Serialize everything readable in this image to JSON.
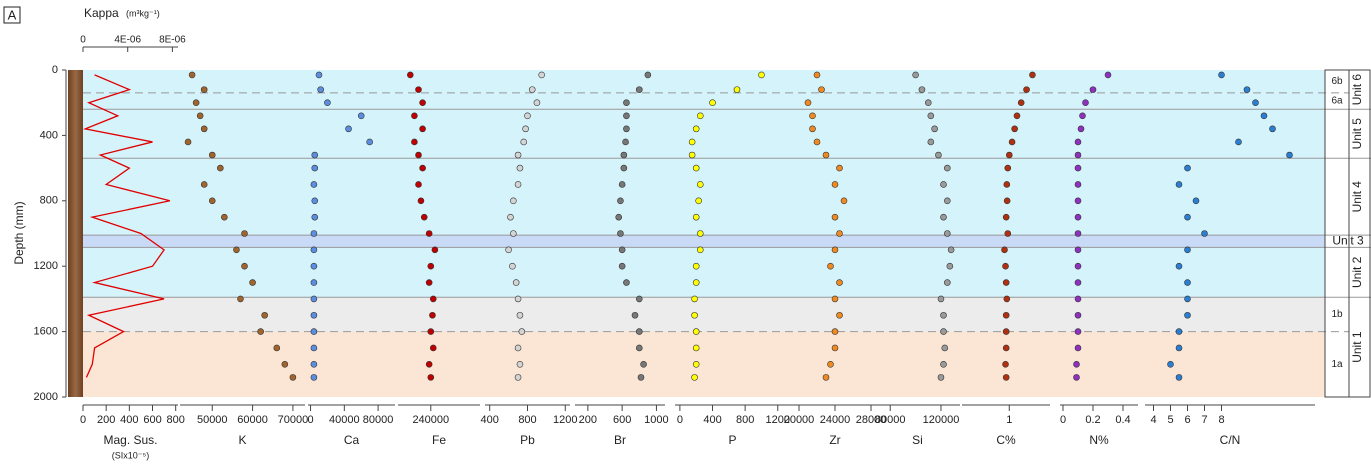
{
  "chart_data": {
    "type": "depth-profile",
    "panel_label": "A",
    "y_label": "Depth (mm)",
    "y_inverted": true,
    "ylim": [
      0,
      2000
    ],
    "yticks": [
      0,
      400,
      800,
      1200,
      1600,
      2000
    ],
    "top_axis": {
      "label": "Kappa",
      "unit": "(m³kg⁻¹)",
      "xlim": [
        0,
        8.5e-06
      ],
      "xticks": [
        0,
        {
          "value": 4e-06,
          "label": "4E-06"
        },
        {
          "value": 8e-06,
          "label": "8E-06"
        }
      ]
    },
    "depths": [
      30,
      120,
      200,
      280,
      360,
      440,
      520,
      600,
      700,
      800,
      900,
      1000,
      1100,
      1200,
      1300,
      1400,
      1500,
      1600,
      1700,
      1800,
      1880
    ],
    "zones": [
      {
        "label": "Unit 6",
        "top": 0,
        "bottom": 240,
        "color": "#d5f3fb"
      },
      {
        "label": "Unit 5",
        "top": 240,
        "bottom": 540,
        "color": "#d5f3fb"
      },
      {
        "label": "Unit 4",
        "top": 540,
        "bottom": 1010,
        "color": "#d5f3fb"
      },
      {
        "label": "Unit 3",
        "top": 1010,
        "bottom": 1085,
        "color": "#c8daf6"
      },
      {
        "label": "Unit 2",
        "top": 1085,
        "bottom": 1390,
        "color": "#d5f3fb"
      },
      {
        "label": "Unit 1",
        "top": 1390,
        "bottom": 2000,
        "color": "#fbe6d5"
      }
    ],
    "subunits": [
      {
        "label": "6b",
        "top": 0,
        "bottom": 140
      },
      {
        "label": "6a",
        "top": 140,
        "bottom": 240
      },
      {
        "label": "1b",
        "top": 1390,
        "bottom": 1600,
        "color": "#ececec"
      },
      {
        "label": "1a",
        "top": 1600,
        "bottom": 2000
      }
    ],
    "panels": [
      {
        "type": "line",
        "name": "Mag. Sus.",
        "unit": "(SIx10⁻⁵)",
        "color": "#e00000",
        "xlim": [
          0,
          820
        ],
        "xticks": [
          0,
          200,
          400,
          600,
          800
        ],
        "values": [
          100,
          400,
          50,
          300,
          20,
          600,
          150,
          400,
          200,
          750,
          80,
          500,
          700,
          600,
          100,
          700,
          50,
          350,
          100,
          80,
          30
        ]
      },
      {
        "type": "scatter",
        "name": "K",
        "color": "#a0642c",
        "xlim": [
          42000,
          73000
        ],
        "xticks": [
          50000,
          60000,
          70000
        ],
        "values": [
          45000,
          48000,
          46000,
          47000,
          48000,
          44000,
          50000,
          52000,
          48000,
          50000,
          53000,
          58000,
          56000,
          58000,
          60000,
          57000,
          63000,
          62000,
          66000,
          68000,
          70000
        ]
      },
      {
        "type": "scatter",
        "name": "Ca",
        "color": "#5b8ee0",
        "xlim": [
          -3000,
          100000
        ],
        "xticks": [
          0,
          40000,
          80000
        ],
        "values": [
          10000,
          12000,
          20000,
          60000,
          45000,
          70000,
          5000,
          5000,
          4000,
          5000,
          5000,
          4000,
          4000,
          4000,
          4000,
          4000,
          4000,
          4000,
          4000,
          4000,
          4000
        ]
      },
      {
        "type": "scatter",
        "name": "Fe",
        "color": "#c00000",
        "xlim": [
          200000,
          300000
        ],
        "xticks": [
          240000
        ],
        "values": [
          215000,
          225000,
          230000,
          220000,
          230000,
          220000,
          225000,
          230000,
          225000,
          228000,
          232000,
          238000,
          245000,
          240000,
          238000,
          243000,
          242000,
          240000,
          243000,
          238000,
          240000
        ]
      },
      {
        "type": "scatter",
        "name": "Pb",
        "color": "#d4d4d4",
        "xlim": [
          350,
          1250
        ],
        "xticks": [
          400,
          800,
          1200
        ],
        "values": [
          950,
          850,
          900,
          800,
          780,
          760,
          700,
          720,
          700,
          650,
          620,
          650,
          600,
          640,
          680,
          700,
          720,
          740,
          700,
          720,
          700
        ]
      },
      {
        "type": "scatter",
        "name": "Br",
        "color": "#777777",
        "xlim": [
          50,
          1100
        ],
        "xticks": [
          200,
          600,
          1000
        ],
        "values": [
          900,
          800,
          650,
          650,
          650,
          640,
          620,
          620,
          600,
          580,
          560,
          580,
          600,
          600,
          650,
          800,
          750,
          800,
          800,
          850,
          820
        ]
      },
      {
        "type": "scatter",
        "name": "P",
        "color": "#ffff00",
        "xlim": [
          -60,
          1350
        ],
        "xticks": [
          0,
          400,
          800,
          1200
        ],
        "values": [
          1000,
          700,
          400,
          250,
          200,
          150,
          150,
          200,
          250,
          230,
          200,
          250,
          250,
          200,
          200,
          180,
          180,
          200,
          200,
          200,
          180
        ]
      },
      {
        "type": "scatter",
        "name": "Zr",
        "color": "#f08a20",
        "xlim": [
          19000,
          29000
        ],
        "xticks": [
          20000,
          24000,
          28000
        ],
        "values": [
          22000,
          22500,
          21000,
          21500,
          21500,
          22000,
          23000,
          24500,
          24000,
          25000,
          24000,
          24500,
          24000,
          23500,
          24500,
          24000,
          24500,
          24000,
          24000,
          23500,
          23000
        ]
      },
      {
        "type": "scatter",
        "name": "Si",
        "color": "#9a9a9a",
        "xlim": [
          68000,
          135000
        ],
        "xticks": [
          80000,
          120000
        ],
        "values": [
          100000,
          105000,
          110000,
          112000,
          115000,
          112000,
          118000,
          125000,
          122000,
          125000,
          122000,
          125000,
          128000,
          127000,
          125000,
          120000,
          122000,
          122000,
          123000,
          122000,
          120000
        ]
      },
      {
        "type": "scatter",
        "name": "C%",
        "color": "#b03010",
        "log": true,
        "xlim": [
          0.2,
          4
        ],
        "xticks": [
          1
        ],
        "values": [
          2.2,
          1.8,
          1.5,
          1.3,
          1.2,
          1.1,
          1.0,
          0.95,
          0.92,
          0.93,
          0.9,
          0.95,
          0.85,
          0.88,
          0.9,
          0.92,
          0.9,
          0.9,
          0.9,
          0.88,
          0.9
        ]
      },
      {
        "type": "scatter",
        "name": "N%",
        "color": "#9030c0",
        "xlim": [
          -0.02,
          0.5
        ],
        "xticks": [
          0,
          0.2,
          0.4
        ],
        "values": [
          0.3,
          0.2,
          0.15,
          0.13,
          0.12,
          0.1,
          0.1,
          0.1,
          0.1,
          0.1,
          0.1,
          0.1,
          0.1,
          0.1,
          0.1,
          0.1,
          0.1,
          0.1,
          0.1,
          0.09,
          0.09
        ]
      },
      {
        "type": "scatter",
        "name": "C/N",
        "color": "#2a7fd4",
        "xlim": [
          3.5,
          13.5
        ],
        "xticks": [
          4,
          5,
          6,
          7,
          8
        ],
        "values": [
          8,
          9.5,
          10,
          10.5,
          11,
          9,
          12,
          6,
          5.5,
          6.5,
          6,
          7,
          6,
          5.5,
          6,
          6,
          6,
          5.5,
          5.5,
          5,
          5.5
        ]
      }
    ]
  }
}
